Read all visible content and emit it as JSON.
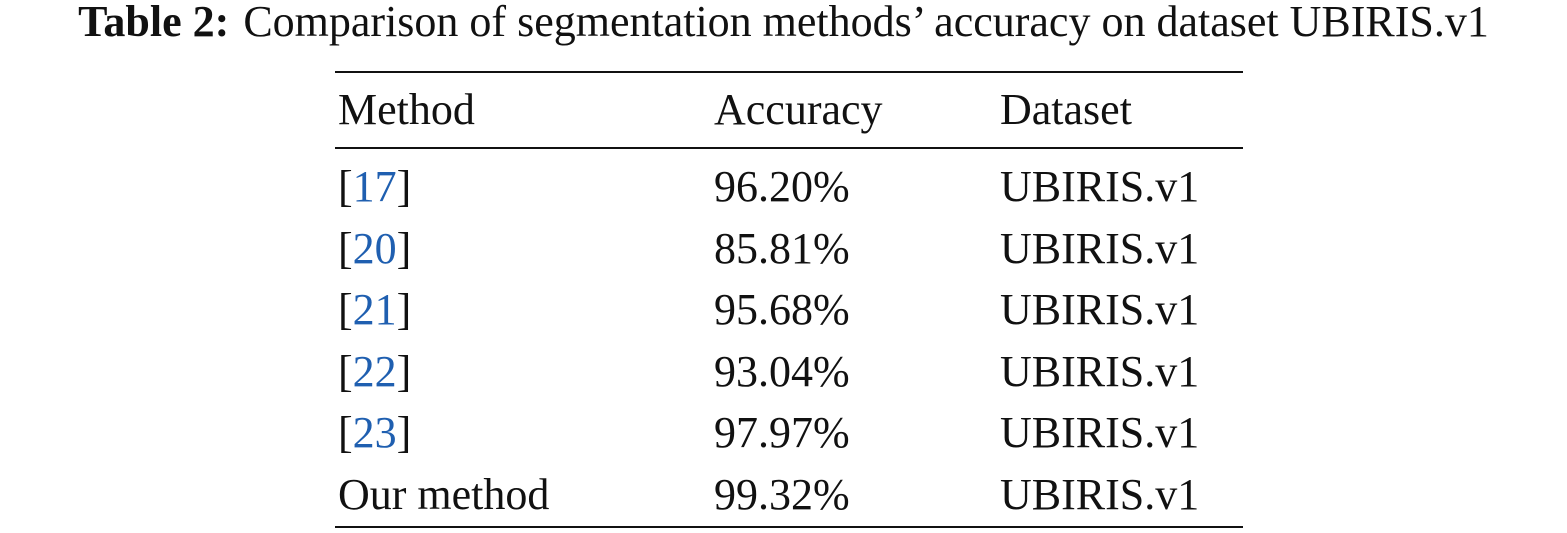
{
  "caption": {
    "label": "Table 2:",
    "text": "Comparison of segmentation methods’ accuracy on dataset UBIRIS.v1"
  },
  "table": {
    "header": [
      "Method",
      "Accuracy",
      "Dataset"
    ],
    "rows": [
      [
        "[17]",
        "96.20%",
        "UBIRIS.v1"
      ],
      [
        "[20]",
        "85.81%",
        "UBIRIS.v1"
      ],
      [
        "[21]",
        "95.68%",
        "UBIRIS.v1"
      ],
      [
        "[22]",
        "93.04%",
        "UBIRIS.v1"
      ],
      [
        "[23]",
        "97.97%",
        "UBIRIS.v1"
      ],
      [
        "Our method",
        "99.32%",
        "UBIRIS.v1"
      ]
    ]
  }
}
